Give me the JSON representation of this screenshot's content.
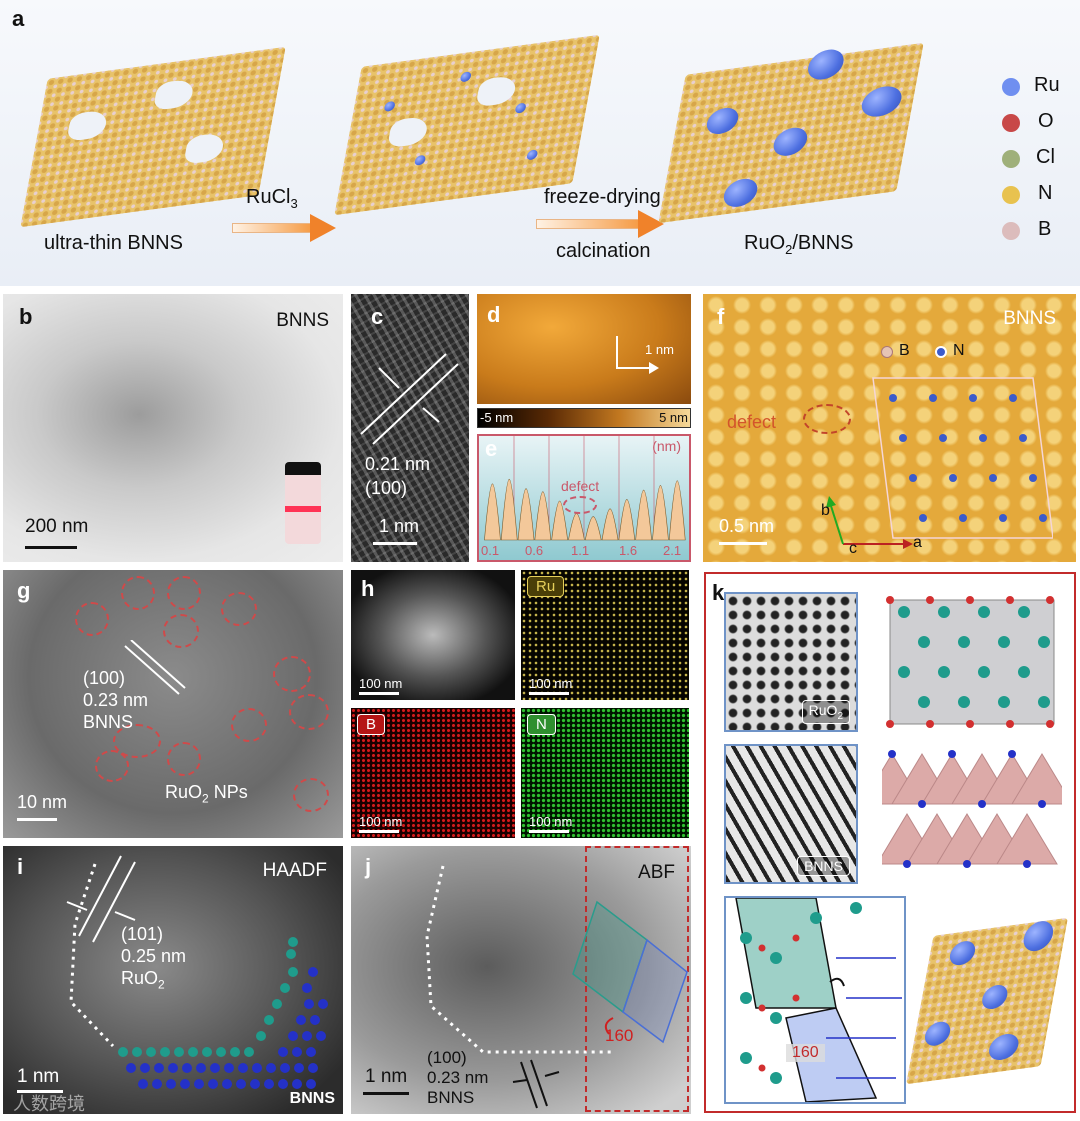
{
  "panel_a": {
    "label": "a",
    "sheet1_caption": "ultra-thin BNNS",
    "arrow1_text": "RuCl",
    "arrow1_sub": "3",
    "arrow2_top": "freeze-drying",
    "arrow2_bottom": "calcination",
    "sheet3_caption_main": "RuO",
    "sheet3_caption_sub": "2",
    "sheet3_caption_rest": "/BNNS",
    "legend": [
      {
        "label": "Ru",
        "color": "#6f8ff0"
      },
      {
        "label": "O",
        "color": "#c84848"
      },
      {
        "label": "Cl",
        "color": "#9fb07a"
      },
      {
        "label": "N",
        "color": "#e8c24f"
      },
      {
        "label": "B",
        "color": "#dcbcbc"
      }
    ]
  },
  "panel_b": {
    "label": "b",
    "title": "BNNS",
    "scale": "200 nm"
  },
  "panel_c": {
    "label": "c",
    "spacing": "0.21 nm",
    "plane": "(100)",
    "scale": "1 nm"
  },
  "panel_d": {
    "label": "d",
    "scale": "1 nm",
    "cbar_min": "-5 nm",
    "cbar_max": "5 nm"
  },
  "panel_e": {
    "label": "e",
    "unit": "(nm)",
    "annotation": "defect",
    "ticks": [
      "0.1",
      "0.6",
      "1.1",
      "1.6",
      "2.1"
    ]
  },
  "panel_f": {
    "label": "f",
    "title": "BNNS",
    "legend_b": "B",
    "legend_n": "N",
    "defect": "defect",
    "scale": "0.5 nm",
    "axis_a": "a",
    "axis_b": "b",
    "axis_c": "c"
  },
  "panel_g": {
    "label": "g",
    "plane": "(100)",
    "spacing": "0.23 nm",
    "material": "BNNS",
    "np_main": "RuO",
    "np_sub": "2",
    "np_rest": " NPs",
    "scale": "10 nm"
  },
  "panel_h": {
    "label": "h",
    "tags": [
      "Ru",
      "B",
      "N"
    ],
    "scale": "100 nm"
  },
  "panel_i": {
    "label": "i",
    "mode": "HAADF",
    "plane": "(101)",
    "spacing": "0.25 nm",
    "mat_main": "RuO",
    "mat_sub": "2",
    "scale": "1 nm",
    "bnns": "BNNS"
  },
  "panel_j": {
    "label": "j",
    "mode": "ABF",
    "angle": "160",
    "plane": "(100)",
    "spacing": "0.23 nm",
    "material": "BNNS",
    "scale": "1 nm"
  },
  "panel_k": {
    "label": "k",
    "tag1_main": "RuO",
    "tag1_sub": "2",
    "tag2": "BNNS",
    "angle": "160"
  },
  "watermark": "人数跨境",
  "colors": {
    "frame_red": "#c22b2b",
    "box_blue": "#6f93c7",
    "orange": "#f0822a"
  }
}
